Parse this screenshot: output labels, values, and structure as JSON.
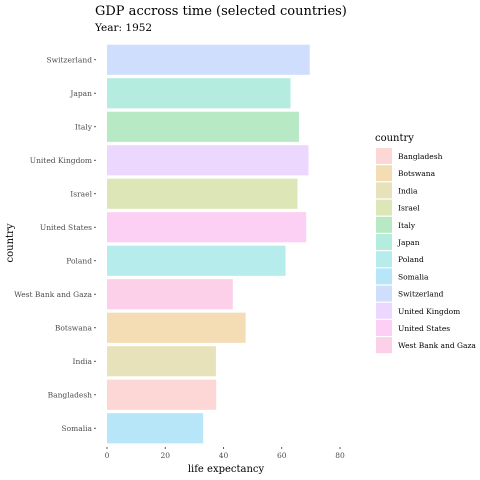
{
  "chart_data": {
    "type": "bar",
    "orientation": "horizontal",
    "title": "GDP accross time (selected countries)",
    "subtitle": "Year: 1952",
    "xlabel": "life expectancy",
    "ylabel": "country",
    "xlim": [
      0,
      80
    ],
    "xticks": [
      0,
      20,
      40,
      60,
      80
    ],
    "categories": [
      "Switzerland",
      "Japan",
      "Italy",
      "United Kingdom",
      "Israel",
      "United States",
      "Poland",
      "West Bank and Gaza",
      "Botswana",
      "India",
      "Bangladesh",
      "Somalia"
    ],
    "values": [
      69.6,
      63.0,
      65.9,
      69.2,
      65.4,
      68.4,
      61.3,
      43.2,
      47.6,
      37.4,
      37.5,
      33.0
    ],
    "colors": [
      "#d0defe",
      "#b4ece0",
      "#b6e9c4",
      "#ecd8fe",
      "#dce6b6",
      "#fcd0f5",
      "#b6eceb",
      "#fdd0ea",
      "#f4dcb4",
      "#e8e2ba",
      "#fdd6d6",
      "#b6e6f7"
    ],
    "grid": false,
    "legend": {
      "title": "country",
      "position": "right",
      "entries": [
        {
          "label": "Bangladesh",
          "color": "#fdd6d6"
        },
        {
          "label": "Botswana",
          "color": "#f4dcb4"
        },
        {
          "label": "India",
          "color": "#e8e2ba"
        },
        {
          "label": "Israel",
          "color": "#dce6b6"
        },
        {
          "label": "Italy",
          "color": "#b6e9c4"
        },
        {
          "label": "Japan",
          "color": "#b4ece0"
        },
        {
          "label": "Poland",
          "color": "#b6eceb"
        },
        {
          "label": "Somalia",
          "color": "#b6e6f7"
        },
        {
          "label": "Switzerland",
          "color": "#d0defe"
        },
        {
          "label": "United Kingdom",
          "color": "#ecd8fe"
        },
        {
          "label": "United States",
          "color": "#fcd0f5"
        },
        {
          "label": "West Bank and Gaza",
          "color": "#fdd0ea"
        }
      ]
    }
  }
}
